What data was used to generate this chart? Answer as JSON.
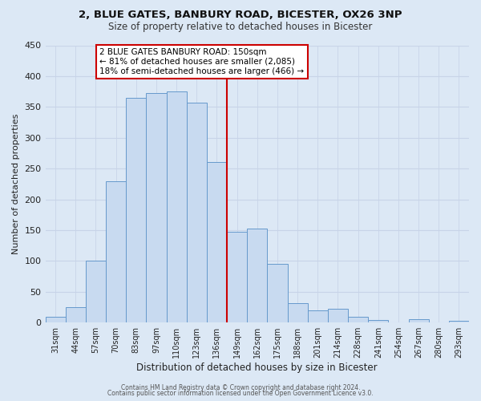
{
  "title": "2, BLUE GATES, BANBURY ROAD, BICESTER, OX26 3NP",
  "subtitle": "Size of property relative to detached houses in Bicester",
  "xlabel": "Distribution of detached houses by size in Bicester",
  "ylabel": "Number of detached properties",
  "bar_labels": [
    "31sqm",
    "44sqm",
    "57sqm",
    "70sqm",
    "83sqm",
    "97sqm",
    "110sqm",
    "123sqm",
    "136sqm",
    "149sqm",
    "162sqm",
    "175sqm",
    "188sqm",
    "201sqm",
    "214sqm",
    "228sqm",
    "241sqm",
    "254sqm",
    "267sqm",
    "280sqm",
    "293sqm"
  ],
  "bar_values": [
    10,
    25,
    100,
    230,
    365,
    372,
    375,
    357,
    260,
    147,
    153,
    95,
    32,
    20,
    22,
    10,
    4,
    0,
    5,
    0,
    3
  ],
  "bar_color": "#c8daf0",
  "bar_edge_color": "#6699cc",
  "vline_color": "#cc0000",
  "annotation_title": "2 BLUE GATES BANBURY ROAD: 150sqm",
  "annotation_line1": "← 81% of detached houses are smaller (2,085)",
  "annotation_line2": "18% of semi-detached houses are larger (466) →",
  "annotation_box_color": "#cc0000",
  "annotation_bg": "#ffffff",
  "ylim": [
    0,
    450
  ],
  "yticks": [
    0,
    50,
    100,
    150,
    200,
    250,
    300,
    350,
    400,
    450
  ],
  "grid_color": "#c8d4e8",
  "bg_color": "#dce8f5",
  "plot_bg": "#dce8f5",
  "footer1": "Contains HM Land Registry data © Crown copyright and database right 2024.",
  "footer2": "Contains public sector information licensed under the Open Government Licence v3.0."
}
